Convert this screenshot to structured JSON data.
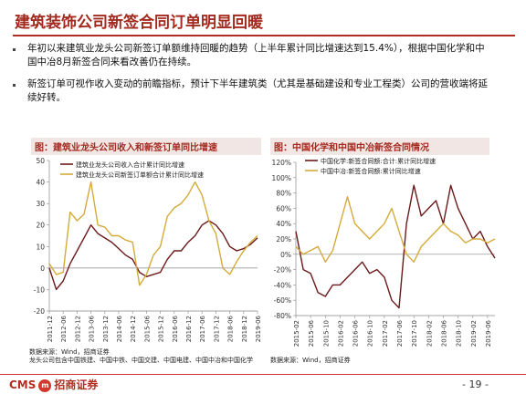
{
  "header": {
    "title": "建筑装饰公司新签合同订单明显回暖"
  },
  "body": {
    "paragraph1": "年初以来建筑业龙头公司新签订单额维持回暖的趋势（上半年累计同比增速达到15.4%），根据中国化学和中国中冶8月新签合同来看改善仍在持续。",
    "paragraph2": "新签订单可视作收入变动的前瞻指标，预计下半年建筑类（尤其是基础建设和专业工程类）公司的营收端将延续好转。"
  },
  "panels": {
    "left_title": "图：建筑业龙头公司收入和新签订单同比增速",
    "right_title": "图：中国化学和中国中冶新签合同情况",
    "left_source": "数据来源：Wind，招商证券",
    "left_note": "龙头公司包含中国铁建、中国中铁、中国交建、中国电建、中国中冶和中国化学",
    "right_source": "数据来源：Wind，招商证券"
  },
  "footer": {
    "brand_latin": "CMS",
    "brand_badge": "m",
    "brand_cn": "招商证券",
    "page": "- 19 -"
  },
  "colors": {
    "accent": "#a32a1f",
    "revenue": "#6b1a1a",
    "orders": "#d4aa3a",
    "chem": "#6b1a1a",
    "mcc": "#d4aa3a"
  },
  "chart_data": [
    {
      "type": "line",
      "title": "图：建筑业龙头公司收入和新签订单同比增速",
      "ylim": [
        -20,
        50
      ],
      "yticks": [
        -20,
        -10,
        0,
        10,
        20,
        30,
        40,
        50
      ],
      "ytick_labels": [
        "-20",
        "-10",
        "0",
        "10",
        "20",
        "30",
        "40",
        "50"
      ],
      "x": [
        "2011-12",
        "2012-03",
        "2012-06",
        "2012-09",
        "2012-12",
        "2013-03",
        "2013-06",
        "2013-09",
        "2013-12",
        "2014-03",
        "2014-06",
        "2014-09",
        "2014-12",
        "2015-03",
        "2015-06",
        "2015-09",
        "2015-12",
        "2016-03",
        "2016-06",
        "2016-09",
        "2016-12",
        "2017-03",
        "2017-06",
        "2017-09",
        "2017-12",
        "2018-03",
        "2018-06",
        "2018-09",
        "2018-12",
        "2019-03",
        "2019-06"
      ],
      "xtick_labels": [
        "2011-12",
        "2012-06",
        "2012-12",
        "2013-06",
        "2013-12",
        "2014-06",
        "2014-12",
        "2015-06",
        "2015-12",
        "2016-06",
        "2016-12",
        "2017-06",
        "2017-12",
        "2018-06",
        "2018-12",
        "2019-06"
      ],
      "series": [
        {
          "name": "建筑业龙头公司收入合计累计同比增速",
          "values": [
            0,
            -10,
            -6,
            2,
            8,
            14,
            20,
            16,
            14,
            12,
            9,
            6,
            4,
            -2,
            -4,
            -3,
            -2,
            4,
            8,
            8,
            12,
            15,
            20,
            22,
            20,
            16,
            10,
            8,
            9,
            11,
            14
          ]
        },
        {
          "name": "建筑业龙头公司新签订单额合计累计同比增速",
          "values": [
            2,
            -3,
            -2,
            26,
            22,
            25,
            40,
            20,
            19,
            15,
            15,
            13,
            12,
            -8,
            -3,
            6,
            10,
            24,
            28,
            30,
            34,
            40,
            34,
            22,
            16,
            0,
            -3,
            3,
            8,
            12,
            15
          ]
        }
      ]
    },
    {
      "type": "line",
      "title": "图：中国化学和中国中冶新签合同情况",
      "ylim": [
        -80,
        120
      ],
      "yticks": [
        -80,
        -60,
        -40,
        -20,
        0,
        20,
        40,
        60,
        80,
        100,
        120
      ],
      "ytick_labels": [
        "-80%",
        "-60%",
        "-40%",
        "-20%",
        "0%",
        "20%",
        "40%",
        "60%",
        "80%",
        "100%",
        "120%"
      ],
      "x": [
        "2015-02",
        "2015-04",
        "2015-06",
        "2015-08",
        "2015-10",
        "2015-12",
        "2016-02",
        "2016-04",
        "2016-06",
        "2016-08",
        "2016-10",
        "2016-12",
        "2017-02",
        "2017-04",
        "2017-06",
        "2017-08",
        "2017-10",
        "2017-12",
        "2018-02",
        "2018-04",
        "2018-06",
        "2018-08",
        "2018-10",
        "2018-12",
        "2019-02",
        "2019-04",
        "2019-06",
        "2019-08"
      ],
      "xtick_labels": [
        "2015-02",
        "2015-06",
        "2015-10",
        "2016-02",
        "2016-06",
        "2016-10",
        "2017-02",
        "2017-06",
        "2017-10",
        "2018-02",
        "2018-06",
        "2018-10",
        "2019-02",
        "2019-06"
      ],
      "series": [
        {
          "name": "中国化学:新签合同额:合计:累计同比增速",
          "values": [
            30,
            -20,
            -25,
            -50,
            -55,
            -40,
            -40,
            -30,
            -20,
            -10,
            -25,
            -20,
            -30,
            -60,
            -70,
            40,
            90,
            50,
            60,
            70,
            40,
            90,
            60,
            40,
            20,
            30,
            10,
            -5
          ]
        },
        {
          "name": "中国中冶:新签合同额:累计同比增速",
          "values": [
            10,
            0,
            5,
            10,
            -10,
            5,
            40,
            75,
            40,
            30,
            20,
            30,
            40,
            60,
            30,
            0,
            -10,
            10,
            20,
            30,
            40,
            30,
            25,
            15,
            20,
            20,
            15,
            20
          ]
        }
      ]
    }
  ]
}
